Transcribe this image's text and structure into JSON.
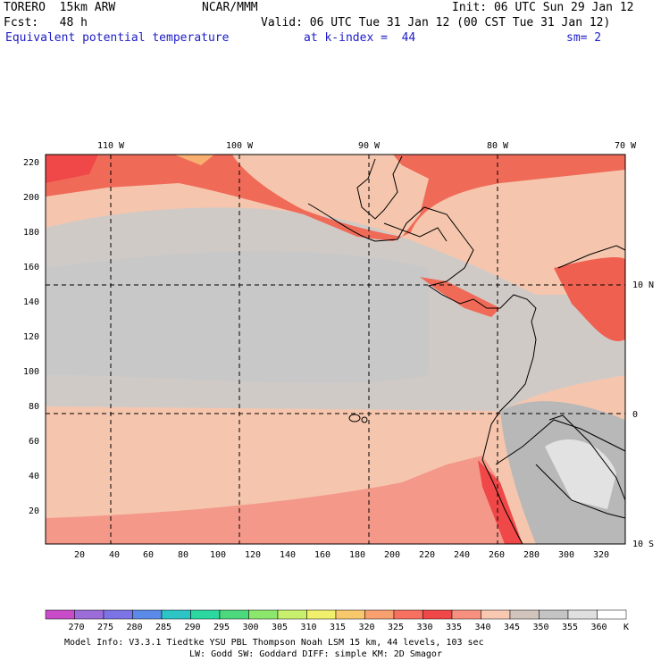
{
  "header": {
    "model": "TORERO  15km ARW",
    "org": "NCAR/MMM",
    "init": "Init: 06 UTC Sun 29 Jan 12",
    "fcst": "Fcst:   48 h",
    "valid": "Valid: 06 UTC Tue 31 Jan 12 (00 CST Tue 31 Jan 12)",
    "field": "Equivalent potential temperature",
    "level": "at k-index =  44",
    "smooth": "sm= 2"
  },
  "map": {
    "lon_labels": [
      "110 W",
      "100 W",
      "90 W",
      "80 W",
      "70 W"
    ],
    "lat_labels": [
      "10 N",
      "0",
      "10 S"
    ],
    "x_ticks": [
      "20",
      "40",
      "60",
      "80",
      "100",
      "120",
      "140",
      "160",
      "180",
      "200",
      "220",
      "240",
      "260",
      "280",
      "300",
      "320"
    ],
    "y_ticks": [
      "220",
      "200",
      "180",
      "160",
      "140",
      "120",
      "100",
      "80",
      "60",
      "40",
      "20"
    ]
  },
  "colorbar": {
    "labels": [
      "270",
      "275",
      "280",
      "285",
      "290",
      "295",
      "300",
      "305",
      "310",
      "315",
      "320",
      "325",
      "330",
      "335",
      "340",
      "345",
      "350",
      "355",
      "360"
    ],
    "unit": "K",
    "colors": [
      "#c84cc8",
      "#9c6cd8",
      "#7c74e4",
      "#5c8ae8",
      "#2cc4c4",
      "#2cd8a0",
      "#4cd87c",
      "#8ce86c",
      "#c8f06c",
      "#f0f06c",
      "#f8c86c",
      "#f8a070",
      "#f87060",
      "#f04848",
      "#f89080",
      "#f8c8b0",
      "#d0c4bc",
      "#c4c4c4",
      "#e0e0e0",
      "#ffffff"
    ]
  },
  "footer": {
    "line1": "Model Info: V3.3.1    Tiedtke YSU PBL  Thompson    Noah LSM  15 km,   44 levels,  103 sec",
    "line2": "LW: Godd SW: Goddard DIFF: simple KM: 2D Smagor"
  }
}
